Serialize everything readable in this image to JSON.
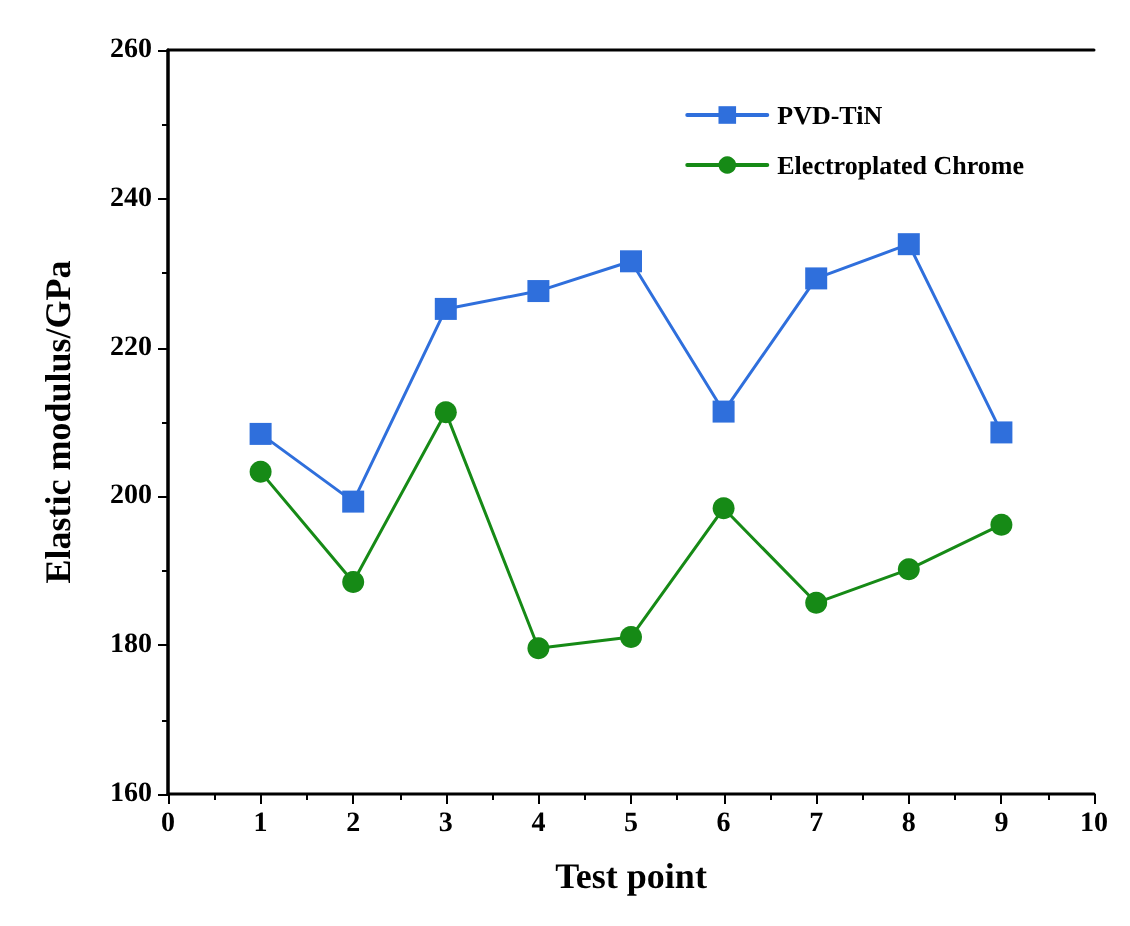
{
  "chart_data": {
    "type": "line",
    "xlabel": "Test point",
    "ylabel": "Elastic modulus/GPa",
    "x": [
      1,
      2,
      3,
      4,
      5,
      6,
      7,
      8,
      9
    ],
    "series": [
      {
        "name": "PVD-TiN",
        "color": "#2f6fdc",
        "marker": "square",
        "values": [
          208.4,
          199.3,
          225.2,
          227.6,
          231.6,
          211.4,
          229.3,
          233.9,
          208.6
        ]
      },
      {
        "name": "Electroplated Chrome",
        "color": "#168a16",
        "marker": "circle",
        "values": [
          203.3,
          188.5,
          211.3,
          179.6,
          181.1,
          198.4,
          185.7,
          190.2,
          196.2
        ]
      }
    ],
    "xlim": [
      0,
      10
    ],
    "xticks": [
      0,
      1,
      2,
      3,
      4,
      5,
      6,
      7,
      8,
      9,
      10
    ],
    "ylim": [
      160,
      260
    ],
    "yticks": [
      160,
      180,
      200,
      220,
      240,
      260
    ],
    "legend": "top right",
    "grid": false
  }
}
